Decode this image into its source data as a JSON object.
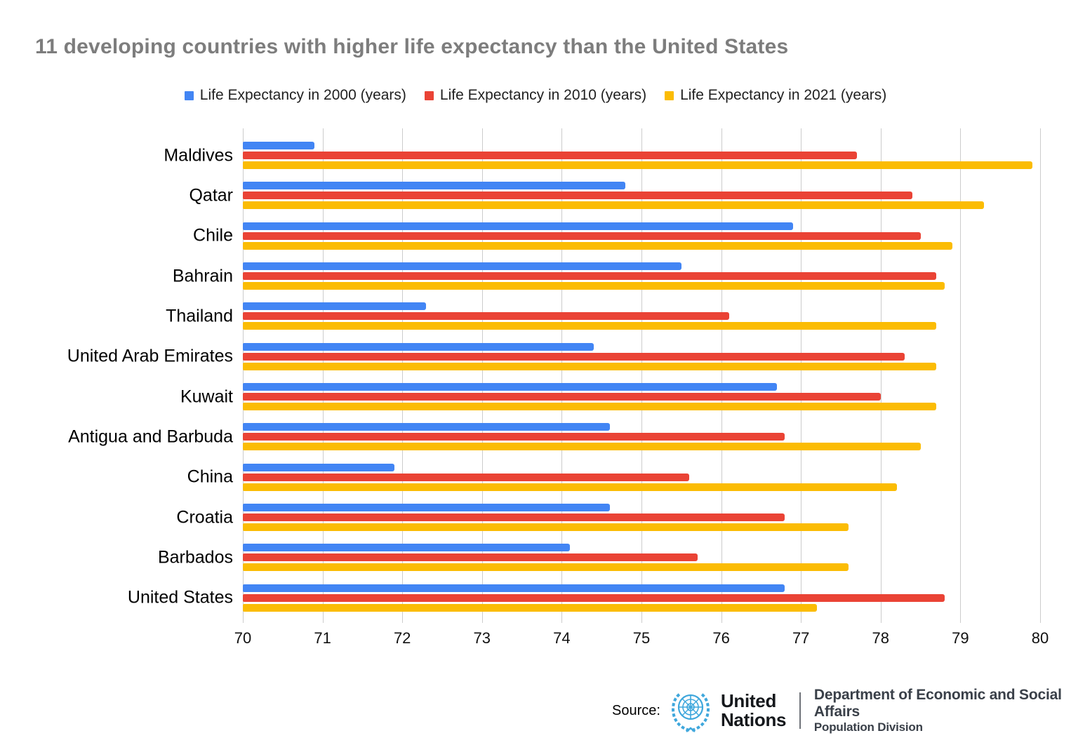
{
  "title": "11 developing countries with higher life expectancy than the United States",
  "chart_data": {
    "type": "bar",
    "orientation": "horizontal",
    "title": "11 developing countries with higher life expectancy than the United States",
    "categories": [
      "Maldives",
      "Qatar",
      "Chile",
      "Bahrain",
      "Thailand",
      "United Arab Emirates",
      "Kuwait",
      "Antigua and Barbuda",
      "China",
      "Croatia",
      "Barbados",
      "United States"
    ],
    "series": [
      {
        "name": "Life Expectancy in 2000 (years)",
        "color": "#4285F4",
        "values": [
          70.9,
          74.8,
          76.9,
          75.5,
          72.3,
          74.4,
          76.7,
          74.6,
          71.9,
          74.6,
          74.1,
          76.8
        ]
      },
      {
        "name": "Life Expectancy in 2010 (years)",
        "color": "#EA4335",
        "values": [
          77.7,
          78.4,
          78.5,
          78.7,
          76.1,
          78.3,
          78.0,
          76.8,
          75.6,
          76.8,
          75.7,
          78.8
        ]
      },
      {
        "name": "Life Expectancy in 2021 (years)",
        "color": "#FBBC04",
        "values": [
          79.9,
          79.3,
          78.9,
          78.8,
          78.7,
          78.7,
          78.7,
          78.5,
          78.2,
          77.6,
          77.6,
          77.2
        ]
      }
    ],
    "xlim": [
      70,
      80
    ],
    "x_ticks": [
      70,
      71,
      72,
      73,
      74,
      75,
      76,
      77,
      78,
      79,
      80
    ],
    "grid": true,
    "gridline_color": "#cccccc",
    "legend_position": "top"
  },
  "footer": {
    "source_label": "Source:",
    "org_line1": "United",
    "org_line2": "Nations",
    "dept_line1": "Department of Economic and Social Affairs",
    "dept_line2": "Population Division",
    "un_blue": "#3FA7DC"
  }
}
